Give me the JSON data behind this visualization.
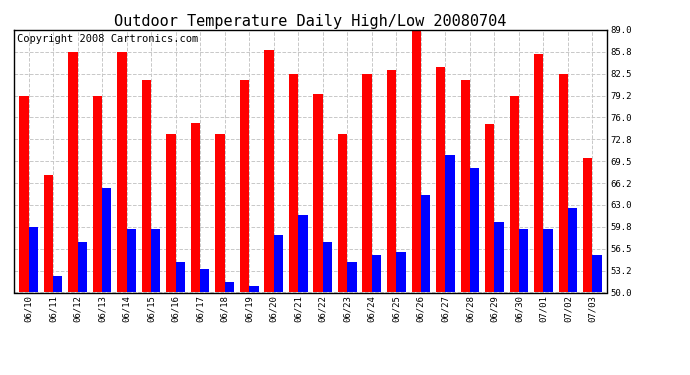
{
  "title": "Outdoor Temperature Daily High/Low 20080704",
  "copyright": "Copyright 2008 Cartronics.com",
  "dates": [
    "06/10",
    "06/11",
    "06/12",
    "06/13",
    "06/14",
    "06/15",
    "06/16",
    "06/17",
    "06/18",
    "06/19",
    "06/20",
    "06/21",
    "06/22",
    "06/23",
    "06/24",
    "06/25",
    "06/26",
    "06/27",
    "06/28",
    "06/29",
    "06/30",
    "07/01",
    "07/02",
    "07/03"
  ],
  "highs": [
    79.2,
    67.5,
    85.8,
    79.2,
    85.8,
    81.5,
    73.5,
    75.2,
    73.5,
    81.5,
    86.0,
    82.5,
    79.5,
    73.5,
    82.5,
    83.0,
    89.0,
    83.5,
    81.5,
    75.0,
    79.2,
    85.5,
    82.5,
    70.0
  ],
  "lows": [
    59.8,
    52.5,
    57.5,
    65.5,
    59.5,
    59.5,
    54.5,
    53.5,
    51.5,
    51.0,
    58.5,
    61.5,
    57.5,
    54.5,
    55.5,
    56.0,
    64.5,
    70.5,
    68.5,
    60.5,
    59.5,
    59.5,
    62.5,
    55.5
  ],
  "ymin": 50.0,
  "ymax": 89.0,
  "yticks": [
    50.0,
    53.2,
    56.5,
    59.8,
    63.0,
    66.2,
    69.5,
    72.8,
    76.0,
    79.2,
    82.5,
    85.8,
    89.0
  ],
  "high_color": "#ff0000",
  "low_color": "#0000ff",
  "bg_color": "#ffffff",
  "grid_color": "#c8c8c8",
  "title_fontsize": 11,
  "copyright_fontsize": 7.5
}
